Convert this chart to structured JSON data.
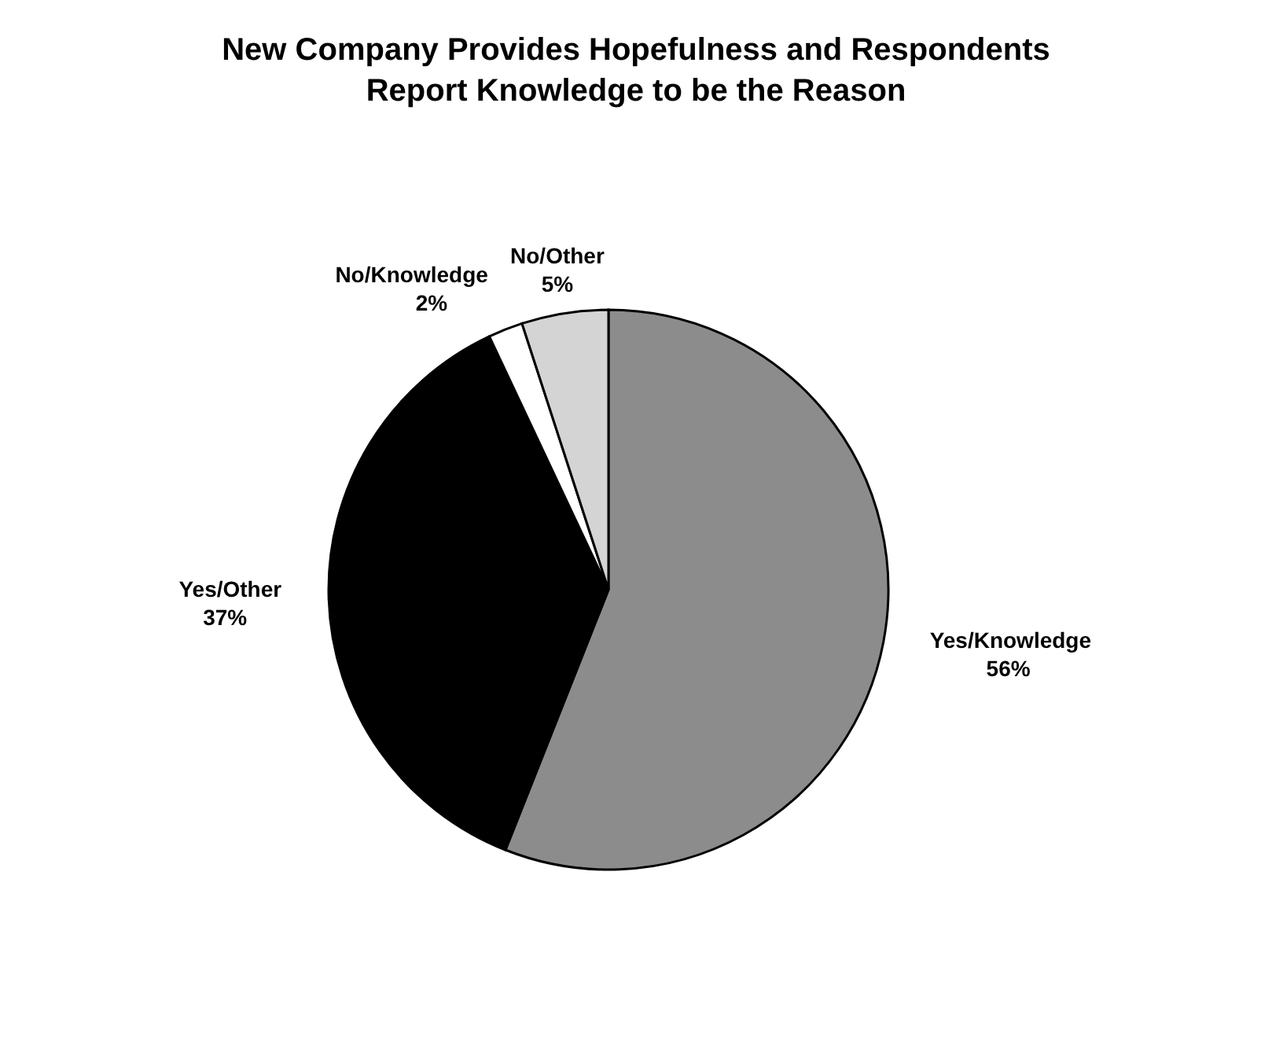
{
  "chart_data": {
    "type": "pie",
    "title": "New Company Provides Hopefulness and Respondents Report Knowledge to be the Reason",
    "categories": [
      "Yes/Knowledge",
      "Yes/Other",
      "No/Knowledge",
      "No/Other"
    ],
    "values": [
      56,
      37,
      2,
      5
    ],
    "value_labels": [
      "56%",
      "37%",
      "2%",
      "5%"
    ],
    "colors": [
      "#8c8c8c",
      "#000000",
      "#ffffff",
      "#d4d4d4"
    ],
    "legend": false
  }
}
